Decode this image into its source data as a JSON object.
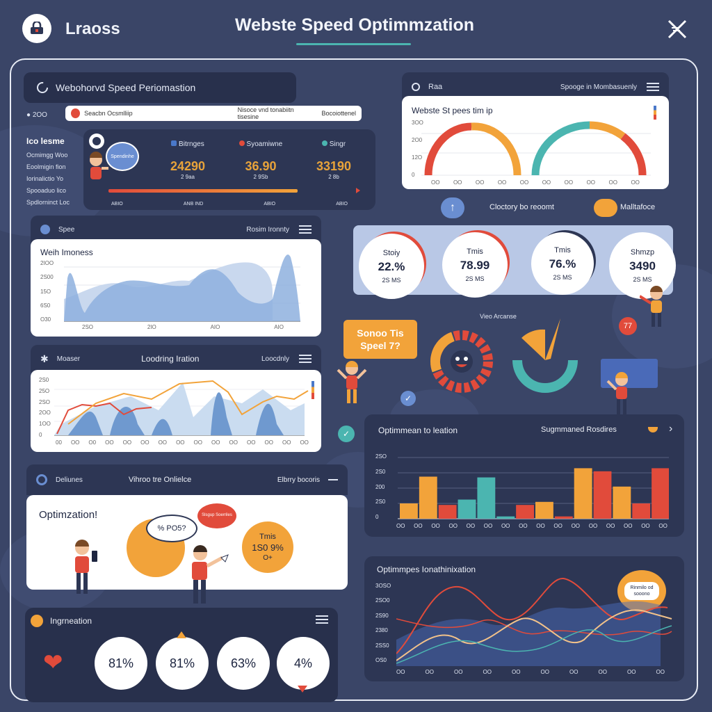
{
  "header": {
    "app_name": "Lraoss",
    "title": "Webste Speed Optimmzation",
    "menu_icon": "close-x-icon"
  },
  "panel_perf": {
    "title": "Webohorvd Speed Periomastion",
    "search_left": "2OO",
    "search_placeholder": "Seacbn Ocsmlliip",
    "search_mid": "Nisoce vnd tonabiitn tisesine",
    "search_right": "Bocoiottenel",
    "sidebar": [
      "Ico lesme",
      "Ocmimgg Woo",
      "Eoolmigin fion",
      "Iorinalictio Yo",
      "Spooaduo lico",
      "Spdlorninct Loc"
    ],
    "badge": "Spendinhe",
    "metrics": [
      {
        "label": "Bitrnges",
        "value": "24290",
        "sub": "2 9aa",
        "foot": "ABIO",
        "dot": "#4a78c9"
      },
      {
        "label": "Syoamiwne",
        "value": "36.90",
        "sub": "2 9Sb",
        "foot": "ANB IND",
        "dot": "#e14b3b"
      },
      {
        "label": "Singr",
        "value": "33190",
        "sub": "2 8b",
        "foot": "ABIO",
        "dot": "#4bb5b0"
      }
    ],
    "extra_foot": "ABIO"
  },
  "panel_gauge": {
    "label_left": "Raa",
    "label_right": "Spooge in Mombasuenly",
    "chart_title": "Webste St pees tim ip",
    "yticks": [
      "3OO",
      "2O0",
      "12O",
      "0"
    ],
    "xticks": [
      "OO",
      "OO",
      "OO",
      "OO",
      "OO",
      "OO",
      "OO",
      "OO",
      "OO",
      "OO"
    ]
  },
  "mid_row": {
    "left_label": "Cloctory bo reoomt",
    "right_label": "Malltafoce"
  },
  "stat_circles": [
    {
      "name": "Stoiy",
      "value": "22.%",
      "sub": "2S MS"
    },
    {
      "name": "Tmis",
      "value": "78.99",
      "sub": "2S MS"
    },
    {
      "name": "Tmis",
      "value": "76.%",
      "sub": "2S MS"
    },
    {
      "name": "Shmzp",
      "value": "3490",
      "sub": "2S MS"
    }
  ],
  "panel_wellness": {
    "label": "Spee",
    "right": "Rosim Ironnty",
    "chart_title": "Weih Imoness",
    "yticks": [
      "2IOO",
      "2S00",
      "15O",
      "6S0",
      "O30"
    ],
    "xticks": [
      "2SO",
      "2IO",
      "AIO",
      "AIO"
    ]
  },
  "panel_loading": {
    "label": "Moaser",
    "title": "Loodring Iration",
    "right": "Loocdnly",
    "yticks": [
      "2S0",
      "25O",
      "2SO",
      "2OO",
      "1OO",
      "0"
    ],
    "xticks": [
      "00",
      "OO",
      "O0",
      "OO",
      "OO",
      "OO",
      "OO",
      "OO",
      "OO",
      "OO",
      "OO",
      "OO",
      "OO",
      "OO",
      "OO"
    ]
  },
  "vitals": {
    "bubble": "Sonoo Tis Speel 7?",
    "label": "Vieo Arcanse",
    "badge": "77"
  },
  "panel_bar": {
    "title": "Optimmean to leation",
    "right": "Sugmmaned Rosdires",
    "yticks": [
      "2SO",
      "2S0",
      "200",
      "2S0",
      "0"
    ],
    "xticks": [
      "OO",
      "OO",
      "OO",
      "OO",
      "OO",
      "OO",
      "OO",
      "OO",
      "OO",
      "OO",
      "OO",
      "OO",
      "OO",
      "OO",
      "OO",
      "OO"
    ],
    "chart_data": {
      "type": "bar",
      "categories": [
        "1",
        "2",
        "3",
        "4",
        "5",
        "6",
        "7",
        "8",
        "9",
        "10",
        "11",
        "12",
        "13",
        "14"
      ],
      "values": [
        20,
        55,
        18,
        25,
        54,
        3,
        18,
        22,
        3,
        66,
        62,
        42,
        20,
        66
      ],
      "colors": [
        "#f2a33a",
        "#f2a33a",
        "#e14b3b",
        "#4bb5b0",
        "#4bb5b0",
        "#4bb5b0",
        "#e14b3b",
        "#f2a33a",
        "#e14b3b",
        "#f2a33a",
        "#e14b3b",
        "#f2a33a",
        "#e14b3b",
        "#e14b3b"
      ],
      "ylim": [
        0,
        80
      ]
    }
  },
  "panel_opt": {
    "label": "Deliunes",
    "center": "Vihroo tre Onlielce",
    "right": "Elbrry bocoris",
    "heading": "Optimzation!",
    "bubble1": "% PO5?",
    "bubble2": "Slsgup Soerriles",
    "circle_title": "Tmis",
    "circle_value": "1S0 9%",
    "circle_sub": "O+"
  },
  "panel_trend": {
    "title": "Optimmpes Ionathinixation",
    "bubble": "Rinmilo od sooono",
    "yticks": [
      "3OSO",
      "2SO0",
      "2S90",
      "2380",
      "2SS0",
      "OS0"
    ],
    "xticks": [
      "OO",
      "OO",
      "OO",
      "OO",
      "OO",
      "OO",
      "OO",
      "OO",
      "OO",
      "OO"
    ]
  },
  "panel_ing": {
    "title": "Ingrneation",
    "percents": [
      "81%",
      "81%",
      "63%",
      "4%"
    ]
  }
}
